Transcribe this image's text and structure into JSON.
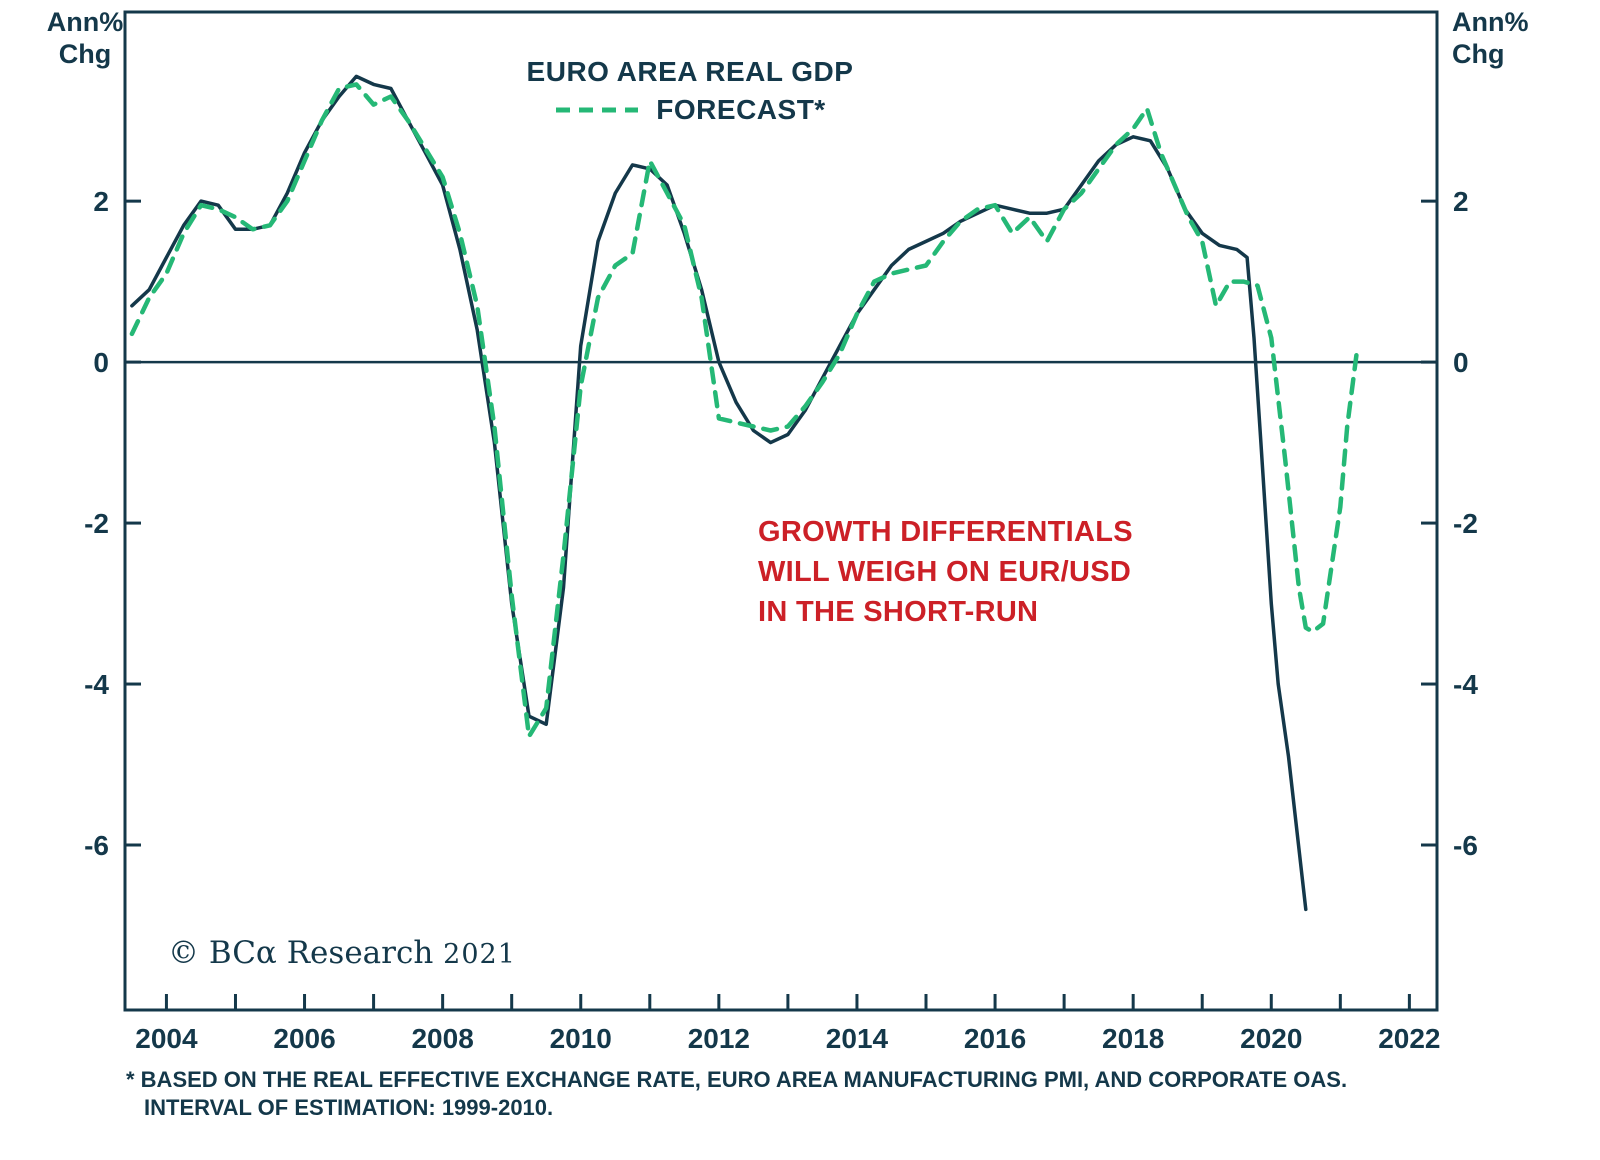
{
  "colors": {
    "navy": "#14384a",
    "green": "#25b876",
    "red": "#cc2027",
    "background": "#ffffff"
  },
  "axis_corner_labels": {
    "top_left_line1": "Ann%",
    "top_left_line2": "Chg",
    "top_right_line1": "Ann%",
    "top_right_line2": "Chg"
  },
  "legend": {
    "title": "EURO AREA REAL GDP",
    "forecast_label": "FORECAST*"
  },
  "annotation": {
    "line1": "GROWTH DIFFERENTIALS",
    "line2": "WILL WEIGH ON EUR/USD",
    "line3": "IN THE SHORT-RUN"
  },
  "copyright": {
    "brand": "© BCα Research",
    "year": "2021"
  },
  "footnote": {
    "line1": "* BASED ON THE REAL EFFECTIVE EXCHANGE RATE, EURO AREA MANUFACTURING PMI, AND CORPORATE OAS.",
    "line2": "INTERVAL OF ESTIMATION: 1999-2010."
  },
  "chart_data": {
    "type": "line",
    "title": "EURO AREA REAL GDP",
    "ylabel": "Ann% Chg",
    "xlabel": "",
    "xlim": [
      2003.4,
      2022.4
    ],
    "ylim": [
      -8.05,
      4.35
    ],
    "x_tick_labels": [
      2004,
      2006,
      2008,
      2010,
      2012,
      2014,
      2016,
      2018,
      2020,
      2022
    ],
    "x_ticks_all_years": [
      2004,
      2005,
      2006,
      2007,
      2008,
      2009,
      2010,
      2011,
      2012,
      2013,
      2014,
      2015,
      2016,
      2017,
      2018,
      2019,
      2020,
      2021,
      2022
    ],
    "y_ticks": [
      2,
      0,
      -2,
      -4,
      -6
    ],
    "zero_line": true,
    "grid": false,
    "legend_position": "top-center",
    "series": [
      {
        "name": "EURO AREA REAL GDP",
        "style": "solid",
        "color": "#14384a",
        "points": [
          [
            2003.5,
            0.7
          ],
          [
            2003.75,
            0.9
          ],
          [
            2004.0,
            1.3
          ],
          [
            2004.25,
            1.7
          ],
          [
            2004.5,
            2.0
          ],
          [
            2004.75,
            1.95
          ],
          [
            2005.0,
            1.65
          ],
          [
            2005.25,
            1.65
          ],
          [
            2005.5,
            1.7
          ],
          [
            2005.75,
            2.1
          ],
          [
            2006.0,
            2.6
          ],
          [
            2006.25,
            3.0
          ],
          [
            2006.5,
            3.3
          ],
          [
            2006.75,
            3.55
          ],
          [
            2007.0,
            3.45
          ],
          [
            2007.25,
            3.4
          ],
          [
            2007.5,
            3.0
          ],
          [
            2007.75,
            2.6
          ],
          [
            2008.0,
            2.2
          ],
          [
            2008.25,
            1.4
          ],
          [
            2008.5,
            0.4
          ],
          [
            2008.75,
            -1.0
          ],
          [
            2009.0,
            -3.0
          ],
          [
            2009.25,
            -4.4
          ],
          [
            2009.5,
            -4.5
          ],
          [
            2009.75,
            -2.8
          ],
          [
            2010.0,
            0.2
          ],
          [
            2010.25,
            1.5
          ],
          [
            2010.5,
            2.1
          ],
          [
            2010.75,
            2.45
          ],
          [
            2011.0,
            2.4
          ],
          [
            2011.25,
            2.2
          ],
          [
            2011.5,
            1.6
          ],
          [
            2011.75,
            0.9
          ],
          [
            2012.0,
            0.0
          ],
          [
            2012.25,
            -0.5
          ],
          [
            2012.5,
            -0.85
          ],
          [
            2012.75,
            -1.0
          ],
          [
            2013.0,
            -0.9
          ],
          [
            2013.25,
            -0.6
          ],
          [
            2013.5,
            -0.2
          ],
          [
            2013.75,
            0.2
          ],
          [
            2014.0,
            0.6
          ],
          [
            2014.25,
            0.9
          ],
          [
            2014.5,
            1.2
          ],
          [
            2014.75,
            1.4
          ],
          [
            2015.0,
            1.5
          ],
          [
            2015.25,
            1.6
          ],
          [
            2015.5,
            1.75
          ],
          [
            2015.75,
            1.85
          ],
          [
            2016.0,
            1.95
          ],
          [
            2016.25,
            1.9
          ],
          [
            2016.5,
            1.85
          ],
          [
            2016.75,
            1.85
          ],
          [
            2017.0,
            1.9
          ],
          [
            2017.25,
            2.2
          ],
          [
            2017.5,
            2.5
          ],
          [
            2017.75,
            2.7
          ],
          [
            2018.0,
            2.8
          ],
          [
            2018.25,
            2.75
          ],
          [
            2018.5,
            2.4
          ],
          [
            2018.75,
            1.9
          ],
          [
            2019.0,
            1.6
          ],
          [
            2019.25,
            1.45
          ],
          [
            2019.5,
            1.4
          ],
          [
            2019.65,
            1.3
          ],
          [
            2019.75,
            0.3
          ],
          [
            2019.85,
            -1.0
          ],
          [
            2020.0,
            -3.0
          ],
          [
            2020.1,
            -4.0
          ],
          [
            2020.25,
            -4.9
          ],
          [
            2020.5,
            -6.8
          ]
        ]
      },
      {
        "name": "FORECAST*",
        "style": "dashed",
        "color": "#25b876",
        "points": [
          [
            2003.5,
            0.35
          ],
          [
            2003.75,
            0.8
          ],
          [
            2004.0,
            1.1
          ],
          [
            2004.25,
            1.6
          ],
          [
            2004.5,
            1.95
          ],
          [
            2004.75,
            1.9
          ],
          [
            2005.0,
            1.8
          ],
          [
            2005.25,
            1.65
          ],
          [
            2005.5,
            1.7
          ],
          [
            2005.75,
            2.0
          ],
          [
            2006.0,
            2.5
          ],
          [
            2006.25,
            3.0
          ],
          [
            2006.5,
            3.4
          ],
          [
            2006.75,
            3.45
          ],
          [
            2007.0,
            3.2
          ],
          [
            2007.25,
            3.3
          ],
          [
            2007.5,
            3.0
          ],
          [
            2007.75,
            2.65
          ],
          [
            2008.0,
            2.3
          ],
          [
            2008.25,
            1.6
          ],
          [
            2008.5,
            0.7
          ],
          [
            2008.75,
            -0.8
          ],
          [
            2009.0,
            -2.9
          ],
          [
            2009.25,
            -4.65
          ],
          [
            2009.5,
            -4.3
          ],
          [
            2009.75,
            -2.4
          ],
          [
            2010.0,
            -0.3
          ],
          [
            2010.25,
            0.8
          ],
          [
            2010.5,
            1.2
          ],
          [
            2010.75,
            1.35
          ],
          [
            2011.0,
            2.5
          ],
          [
            2011.25,
            2.1
          ],
          [
            2011.5,
            1.7
          ],
          [
            2011.75,
            0.8
          ],
          [
            2012.0,
            -0.7
          ],
          [
            2012.25,
            -0.75
          ],
          [
            2012.5,
            -0.8
          ],
          [
            2012.75,
            -0.85
          ],
          [
            2013.0,
            -0.8
          ],
          [
            2013.25,
            -0.55
          ],
          [
            2013.5,
            -0.25
          ],
          [
            2013.75,
            0.1
          ],
          [
            2014.0,
            0.6
          ],
          [
            2014.25,
            1.0
          ],
          [
            2014.5,
            1.1
          ],
          [
            2014.75,
            1.15
          ],
          [
            2015.0,
            1.2
          ],
          [
            2015.25,
            1.5
          ],
          [
            2015.5,
            1.75
          ],
          [
            2015.75,
            1.9
          ],
          [
            2016.0,
            1.95
          ],
          [
            2016.25,
            1.6
          ],
          [
            2016.5,
            1.8
          ],
          [
            2016.75,
            1.5
          ],
          [
            2017.0,
            1.9
          ],
          [
            2017.25,
            2.1
          ],
          [
            2017.5,
            2.4
          ],
          [
            2017.75,
            2.7
          ],
          [
            2018.0,
            2.9
          ],
          [
            2018.2,
            3.15
          ],
          [
            2018.4,
            2.6
          ],
          [
            2018.6,
            2.2
          ],
          [
            2018.8,
            1.8
          ],
          [
            2019.0,
            1.5
          ],
          [
            2019.2,
            0.7
          ],
          [
            2019.4,
            1.0
          ],
          [
            2019.6,
            1.0
          ],
          [
            2019.8,
            0.95
          ],
          [
            2020.0,
            0.3
          ],
          [
            2020.2,
            -1.2
          ],
          [
            2020.4,
            -2.8
          ],
          [
            2020.5,
            -3.3
          ],
          [
            2020.6,
            -3.35
          ],
          [
            2020.75,
            -3.25
          ],
          [
            2021.0,
            -1.8
          ],
          [
            2021.1,
            -0.8
          ],
          [
            2021.25,
            0.2
          ]
        ]
      }
    ]
  }
}
